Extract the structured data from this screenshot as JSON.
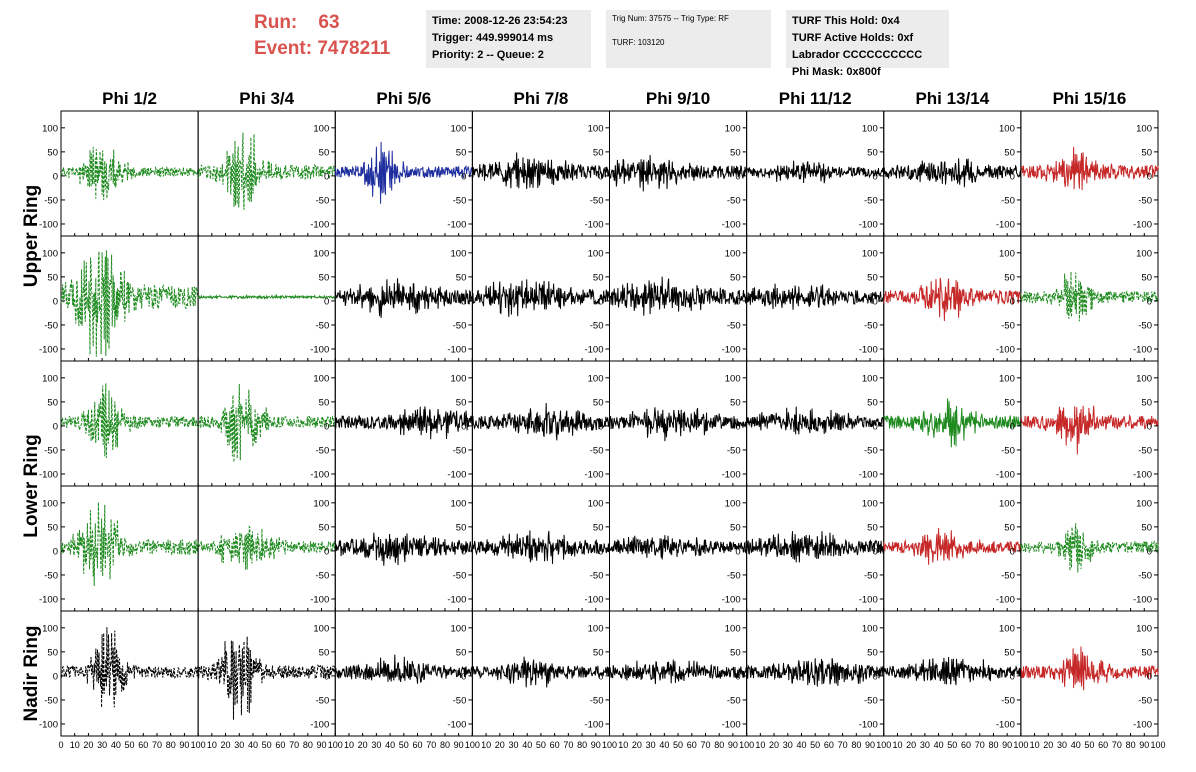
{
  "header": {
    "run_label": "Run:",
    "run_value": "63",
    "event_label": "Event:",
    "event_value": "7478211",
    "accent_color": "#d9534f"
  },
  "info_time": {
    "time": "Time: 2008-12-26 23:54:23",
    "trigger": "Trigger: 449.999014 ms",
    "priority": "Priority: 2 -- Queue: 2"
  },
  "info_trig": {
    "trig_line": "Trig Num: 37575 -- Trig Type: RF",
    "turf_line": "TURF: 103120"
  },
  "info_turf": {
    "this_hold": "TURF This Hold: 0x4",
    "active_holds": "TURF Active Holds: 0xf",
    "labrador": "Labrador CCCCCCCCCC",
    "phi_mask": "Phi Mask: 0x800f"
  },
  "chart_data": {
    "type": "line",
    "columns": [
      "Phi 1/2",
      "Phi 3/4",
      "Phi 5/6",
      "Phi 7/8",
      "Phi 9/10",
      "Phi 11/12",
      "Phi 13/14",
      "Phi 15/16"
    ],
    "rows": [
      "Upper Ring",
      "Lower Ring",
      "Nadir Ring"
    ],
    "row_label_spans": [
      [
        0,
        1
      ],
      [
        2,
        3
      ],
      [
        4,
        4
      ]
    ],
    "panel_rows": 5,
    "xlim": [
      0,
      100
    ],
    "ylim": [
      -125,
      135
    ],
    "y_ticks": [
      100,
      50,
      0,
      -50,
      -100
    ],
    "x_tick_labels": [
      "0",
      "10",
      "20",
      "30",
      "40",
      "50",
      "60",
      "70",
      "80",
      "90",
      "100"
    ],
    "y_tick_side": [
      "left",
      "right",
      "right",
      "right",
      "right",
      "right",
      "right",
      "right"
    ],
    "colors": {
      "black": "#000000",
      "green": "#1f8a1f",
      "blue": "#1f2e9e",
      "red": "#c62828"
    },
    "panels": [
      [
        {
          "color": "green",
          "dashed": true,
          "amp": 45,
          "center": 30,
          "width": 14,
          "noise": 10,
          "seed": 11
        },
        {
          "color": "green",
          "dashed": true,
          "amp": 65,
          "center": 32,
          "width": 14,
          "noise": 15,
          "seed": 12
        },
        {
          "color": "blue",
          "dashed": false,
          "amp": 45,
          "center": 34,
          "width": 12,
          "noise": 12,
          "seed": 13
        },
        {
          "color": "black",
          "dashed": false,
          "amp": 20,
          "center": 40,
          "width": 30,
          "noise": 14,
          "seed": 14
        },
        {
          "color": "black",
          "dashed": false,
          "amp": 20,
          "center": 25,
          "width": 30,
          "noise": 14,
          "seed": 15
        },
        {
          "color": "black",
          "dashed": false,
          "amp": 12,
          "center": 40,
          "width": 30,
          "noise": 10,
          "seed": 16
        },
        {
          "color": "black",
          "dashed": false,
          "amp": 18,
          "center": 45,
          "width": 30,
          "noise": 12,
          "seed": 17
        },
        {
          "color": "red",
          "dashed": false,
          "amp": 30,
          "center": 40,
          "width": 16,
          "noise": 14,
          "seed": 18
        }
      ],
      [
        {
          "color": "green",
          "dashed": true,
          "amp": 90,
          "center": 30,
          "width": 18,
          "noise": 25,
          "seed": 21
        },
        {
          "color": "green",
          "dashed": false,
          "amp": 2,
          "center": 50,
          "width": 40,
          "noise": 2,
          "seed": 22
        },
        {
          "color": "black",
          "dashed": false,
          "amp": 22,
          "center": 45,
          "width": 30,
          "noise": 16,
          "seed": 23
        },
        {
          "color": "black",
          "dashed": false,
          "amp": 22,
          "center": 35,
          "width": 30,
          "noise": 16,
          "seed": 24
        },
        {
          "color": "black",
          "dashed": false,
          "amp": 22,
          "center": 40,
          "width": 30,
          "noise": 16,
          "seed": 25
        },
        {
          "color": "black",
          "dashed": false,
          "amp": 18,
          "center": 35,
          "width": 30,
          "noise": 14,
          "seed": 26
        },
        {
          "color": "red",
          "dashed": false,
          "amp": 28,
          "center": 45,
          "width": 18,
          "noise": 14,
          "seed": 27
        },
        {
          "color": "green",
          "dashed": true,
          "amp": 45,
          "center": 40,
          "width": 12,
          "noise": 12,
          "seed": 28
        }
      ],
      [
        {
          "color": "green",
          "dashed": true,
          "amp": 55,
          "center": 32,
          "width": 14,
          "noise": 12,
          "seed": 31
        },
        {
          "color": "green",
          "dashed": true,
          "amp": 60,
          "center": 32,
          "width": 14,
          "noise": 12,
          "seed": 32
        },
        {
          "color": "black",
          "dashed": false,
          "amp": 22,
          "center": 70,
          "width": 25,
          "noise": 14,
          "seed": 33
        },
        {
          "color": "black",
          "dashed": false,
          "amp": 20,
          "center": 55,
          "width": 30,
          "noise": 14,
          "seed": 34
        },
        {
          "color": "black",
          "dashed": false,
          "amp": 20,
          "center": 45,
          "width": 30,
          "noise": 14,
          "seed": 35
        },
        {
          "color": "black",
          "dashed": false,
          "amp": 18,
          "center": 40,
          "width": 30,
          "noise": 12,
          "seed": 36
        },
        {
          "color": "green",
          "dashed": false,
          "amp": 35,
          "center": 45,
          "width": 18,
          "noise": 14,
          "seed": 37
        },
        {
          "color": "red",
          "dashed": false,
          "amp": 35,
          "center": 40,
          "width": 14,
          "noise": 14,
          "seed": 38
        }
      ],
      [
        {
          "color": "green",
          "dashed": true,
          "amp": 65,
          "center": 28,
          "width": 16,
          "noise": 16,
          "seed": 41
        },
        {
          "color": "green",
          "dashed": true,
          "amp": 35,
          "center": 35,
          "width": 20,
          "noise": 12,
          "seed": 42
        },
        {
          "color": "black",
          "dashed": false,
          "amp": 22,
          "center": 40,
          "width": 30,
          "noise": 14,
          "seed": 43
        },
        {
          "color": "black",
          "dashed": false,
          "amp": 22,
          "center": 50,
          "width": 30,
          "noise": 14,
          "seed": 44
        },
        {
          "color": "black",
          "dashed": false,
          "amp": 18,
          "center": 40,
          "width": 30,
          "noise": 12,
          "seed": 45
        },
        {
          "color": "black",
          "dashed": false,
          "amp": 20,
          "center": 40,
          "width": 30,
          "noise": 14,
          "seed": 46
        },
        {
          "color": "red",
          "dashed": false,
          "amp": 25,
          "center": 40,
          "width": 20,
          "noise": 12,
          "seed": 47
        },
        {
          "color": "green",
          "dashed": true,
          "amp": 40,
          "center": 40,
          "width": 12,
          "noise": 12,
          "seed": 48
        }
      ],
      [
        {
          "color": "black",
          "dashed": true,
          "amp": 65,
          "center": 35,
          "width": 12,
          "noise": 12,
          "seed": 51
        },
        {
          "color": "black",
          "dashed": true,
          "amp": 70,
          "center": 30,
          "width": 14,
          "noise": 14,
          "seed": 52
        },
        {
          "color": "black",
          "dashed": false,
          "amp": 18,
          "center": 45,
          "width": 30,
          "noise": 12,
          "seed": 53
        },
        {
          "color": "black",
          "dashed": false,
          "amp": 16,
          "center": 45,
          "width": 30,
          "noise": 12,
          "seed": 54
        },
        {
          "color": "black",
          "dashed": false,
          "amp": 16,
          "center": 40,
          "width": 30,
          "noise": 12,
          "seed": 55
        },
        {
          "color": "black",
          "dashed": false,
          "amp": 22,
          "center": 55,
          "width": 25,
          "noise": 14,
          "seed": 56
        },
        {
          "color": "black",
          "dashed": false,
          "amp": 18,
          "center": 50,
          "width": 30,
          "noise": 12,
          "seed": 57
        },
        {
          "color": "red",
          "dashed": false,
          "amp": 35,
          "center": 45,
          "width": 16,
          "noise": 14,
          "seed": 58
        }
      ]
    ]
  }
}
